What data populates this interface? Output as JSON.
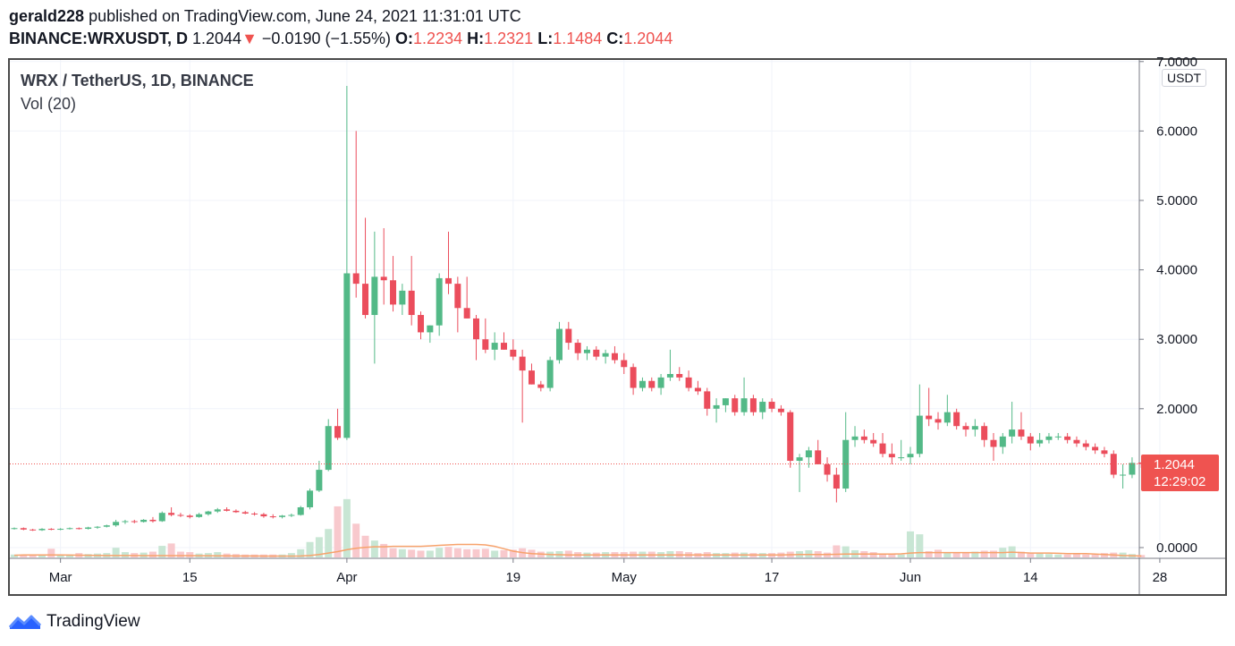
{
  "header": {
    "author": "gerald228",
    "published_text": "published on TradingView.com, June 24, 2021 11:31:01 UTC",
    "symbol": "BINANCE:WRXUSDT, D",
    "last": "1.2044",
    "change": "−0.0190 (−1.55%)",
    "o_label": "O:",
    "o_value": "1.2234",
    "h_label": "H:",
    "h_value": "1.2321",
    "l_label": "L:",
    "l_value": "1.1484",
    "c_label": "C:",
    "c_value": "1.2044"
  },
  "legend": {
    "title": "WRX / TetherUS, 1D, BINANCE",
    "volume": "Vol (20)"
  },
  "price_scale": {
    "unit": "USDT",
    "last_price": "1.2044",
    "countdown": "12:29:02"
  },
  "footer": {
    "brand": "TradingView"
  },
  "colors": {
    "up": "#26a69a",
    "up_candle": "#53b987",
    "down": "#eb4d5c",
    "volume_up": "#c8e6d4",
    "volume_down": "#f8c9cd",
    "vol_ma": "#f7a26b",
    "grid": "#f0f3fa",
    "price_tag": "#ef5350",
    "brand": "#2962ff"
  },
  "chart_data": {
    "type": "candlestick",
    "ylim": [
      0,
      7
    ],
    "y_ticks": [
      "0.0000",
      "2.0000",
      "3.0000",
      "4.0000",
      "5.0000",
      "6.0000",
      "7.0000"
    ],
    "x_ticks": [
      {
        "label": "Mar",
        "date": "2021-03-01"
      },
      {
        "label": "15",
        "date": "2021-03-15"
      },
      {
        "label": "Apr",
        "date": "2021-04-01"
      },
      {
        "label": "19",
        "date": "2021-04-19"
      },
      {
        "label": "May",
        "date": "2021-05-01"
      },
      {
        "label": "17",
        "date": "2021-05-17"
      },
      {
        "label": "Jun",
        "date": "2021-06-01"
      },
      {
        "label": "14",
        "date": "2021-06-14"
      },
      {
        "label": "28",
        "date": "2021-06-28"
      }
    ],
    "start_date": "2021-02-24",
    "ohlc": [
      [
        0.27,
        0.29,
        0.26,
        0.28
      ],
      [
        0.28,
        0.29,
        0.25,
        0.26
      ],
      [
        0.26,
        0.27,
        0.24,
        0.25
      ],
      [
        0.25,
        0.28,
        0.24,
        0.27
      ],
      [
        0.27,
        0.28,
        0.25,
        0.26
      ],
      [
        0.26,
        0.28,
        0.25,
        0.27
      ],
      [
        0.27,
        0.29,
        0.26,
        0.28
      ],
      [
        0.28,
        0.29,
        0.26,
        0.27
      ],
      [
        0.27,
        0.3,
        0.26,
        0.29
      ],
      [
        0.29,
        0.31,
        0.27,
        0.3
      ],
      [
        0.3,
        0.33,
        0.29,
        0.32
      ],
      [
        0.32,
        0.4,
        0.3,
        0.37
      ],
      [
        0.37,
        0.4,
        0.34,
        0.38
      ],
      [
        0.38,
        0.4,
        0.35,
        0.37
      ],
      [
        0.37,
        0.41,
        0.36,
        0.4
      ],
      [
        0.4,
        0.44,
        0.36,
        0.38
      ],
      [
        0.38,
        0.52,
        0.37,
        0.5
      ],
      [
        0.5,
        0.58,
        0.45,
        0.47
      ],
      [
        0.47,
        0.5,
        0.44,
        0.46
      ],
      [
        0.46,
        0.48,
        0.42,
        0.44
      ],
      [
        0.44,
        0.5,
        0.43,
        0.48
      ],
      [
        0.48,
        0.53,
        0.46,
        0.52
      ],
      [
        0.52,
        0.57,
        0.5,
        0.55
      ],
      [
        0.55,
        0.58,
        0.52,
        0.53
      ],
      [
        0.53,
        0.55,
        0.5,
        0.51
      ],
      [
        0.51,
        0.53,
        0.48,
        0.49
      ],
      [
        0.49,
        0.51,
        0.46,
        0.48
      ],
      [
        0.48,
        0.5,
        0.43,
        0.45
      ],
      [
        0.45,
        0.48,
        0.42,
        0.44
      ],
      [
        0.44,
        0.47,
        0.42,
        0.46
      ],
      [
        0.46,
        0.49,
        0.44,
        0.47
      ],
      [
        0.47,
        0.6,
        0.46,
        0.58
      ],
      [
        0.58,
        0.85,
        0.55,
        0.82
      ],
      [
        0.82,
        1.25,
        0.8,
        1.12
      ],
      [
        1.12,
        1.85,
        1.1,
        1.75
      ],
      [
        1.75,
        2.0,
        1.55,
        1.58
      ],
      [
        1.58,
        6.65,
        1.55,
        3.95
      ],
      [
        3.95,
        6.0,
        3.6,
        3.8
      ],
      [
        3.8,
        4.75,
        3.3,
        3.35
      ],
      [
        3.35,
        4.55,
        2.65,
        3.9
      ],
      [
        3.9,
        4.6,
        3.5,
        3.85
      ],
      [
        3.85,
        4.2,
        3.4,
        3.5
      ],
      [
        3.5,
        3.8,
        3.35,
        3.7
      ],
      [
        3.7,
        4.2,
        3.2,
        3.35
      ],
      [
        3.35,
        3.4,
        3.0,
        3.1
      ],
      [
        3.1,
        3.2,
        2.95,
        3.2
      ],
      [
        3.2,
        3.95,
        3.05,
        3.88
      ],
      [
        3.88,
        4.55,
        3.65,
        3.8
      ],
      [
        3.8,
        3.9,
        3.1,
        3.45
      ],
      [
        3.45,
        3.9,
        3.3,
        3.3
      ],
      [
        3.3,
        3.35,
        2.7,
        3.0
      ],
      [
        3.0,
        3.3,
        2.8,
        2.85
      ],
      [
        2.85,
        3.1,
        2.7,
        2.95
      ],
      [
        2.95,
        3.1,
        2.85,
        2.85
      ],
      [
        2.85,
        3.0,
        2.7,
        2.75
      ],
      [
        2.75,
        2.85,
        1.8,
        2.55
      ],
      [
        2.55,
        2.65,
        2.35,
        2.35
      ],
      [
        2.35,
        2.4,
        2.25,
        2.3
      ],
      [
        2.3,
        2.75,
        2.25,
        2.7
      ],
      [
        2.7,
        3.25,
        2.65,
        3.15
      ],
      [
        3.15,
        3.25,
        2.85,
        2.95
      ],
      [
        2.95,
        3.0,
        2.7,
        2.8
      ],
      [
        2.8,
        2.9,
        2.7,
        2.85
      ],
      [
        2.85,
        2.9,
        2.7,
        2.75
      ],
      [
        2.75,
        2.85,
        2.65,
        2.8
      ],
      [
        2.8,
        2.9,
        2.65,
        2.7
      ],
      [
        2.7,
        2.8,
        2.5,
        2.6
      ],
      [
        2.6,
        2.65,
        2.2,
        2.3
      ],
      [
        2.3,
        2.45,
        2.25,
        2.4
      ],
      [
        2.4,
        2.45,
        2.25,
        2.3
      ],
      [
        2.3,
        2.5,
        2.2,
        2.45
      ],
      [
        2.45,
        2.85,
        2.4,
        2.5
      ],
      [
        2.5,
        2.6,
        2.4,
        2.45
      ],
      [
        2.45,
        2.55,
        2.25,
        2.3
      ],
      [
        2.3,
        2.4,
        2.2,
        2.25
      ],
      [
        2.25,
        2.3,
        1.9,
        2.0
      ],
      [
        2.0,
        2.15,
        1.8,
        2.05
      ],
      [
        2.05,
        2.15,
        1.95,
        2.15
      ],
      [
        2.15,
        2.2,
        1.9,
        1.95
      ],
      [
        1.95,
        2.45,
        1.9,
        2.15
      ],
      [
        2.15,
        2.2,
        1.9,
        1.95
      ],
      [
        1.95,
        2.15,
        1.85,
        2.1
      ],
      [
        2.1,
        2.15,
        1.95,
        2.0
      ],
      [
        2.0,
        2.05,
        1.9,
        1.95
      ],
      [
        1.95,
        1.98,
        1.15,
        1.25
      ],
      [
        1.25,
        1.35,
        0.8,
        1.3
      ],
      [
        1.3,
        1.45,
        1.15,
        1.4
      ],
      [
        1.4,
        1.55,
        1.2,
        1.2
      ],
      [
        1.2,
        1.3,
        0.95,
        1.05
      ],
      [
        1.05,
        1.15,
        0.65,
        0.85
      ],
      [
        0.85,
        1.95,
        0.8,
        1.55
      ],
      [
        1.55,
        1.75,
        1.45,
        1.6
      ],
      [
        1.6,
        1.7,
        1.5,
        1.55
      ],
      [
        1.55,
        1.65,
        1.45,
        1.5
      ],
      [
        1.5,
        1.65,
        1.3,
        1.35
      ],
      [
        1.35,
        1.5,
        1.2,
        1.3
      ],
      [
        1.3,
        1.55,
        1.25,
        1.3
      ],
      [
        1.3,
        1.45,
        1.2,
        1.35
      ],
      [
        1.35,
        2.35,
        1.3,
        1.9
      ],
      [
        1.9,
        2.3,
        1.75,
        1.85
      ],
      [
        1.85,
        1.95,
        1.7,
        1.8
      ],
      [
        1.8,
        2.2,
        1.75,
        1.95
      ],
      [
        1.95,
        2.0,
        1.7,
        1.75
      ],
      [
        1.75,
        1.8,
        1.6,
        1.7
      ],
      [
        1.7,
        1.85,
        1.6,
        1.75
      ],
      [
        1.75,
        1.8,
        1.45,
        1.55
      ],
      [
        1.55,
        1.65,
        1.25,
        1.45
      ],
      [
        1.45,
        1.65,
        1.35,
        1.6
      ],
      [
        1.6,
        2.1,
        1.5,
        1.7
      ],
      [
        1.7,
        1.95,
        1.55,
        1.6
      ],
      [
        1.6,
        1.65,
        1.4,
        1.5
      ],
      [
        1.5,
        1.65,
        1.45,
        1.55
      ],
      [
        1.55,
        1.65,
        1.5,
        1.6
      ],
      [
        1.6,
        1.65,
        1.55,
        1.6
      ],
      [
        1.6,
        1.65,
        1.5,
        1.55
      ],
      [
        1.55,
        1.6,
        1.45,
        1.5
      ],
      [
        1.5,
        1.55,
        1.4,
        1.45
      ],
      [
        1.45,
        1.5,
        1.35,
        1.4
      ],
      [
        1.4,
        1.45,
        1.3,
        1.35
      ],
      [
        1.35,
        1.4,
        1.0,
        1.05
      ],
      [
        1.05,
        1.2,
        0.85,
        1.05
      ],
      [
        1.05,
        1.3,
        1.0,
        1.22
      ],
      [
        1.2234,
        1.2321,
        1.1484,
        1.2044
      ]
    ],
    "volume": [
      0.6,
      0.5,
      0.5,
      0.6,
      1.8,
      0.6,
      0.6,
      0.9,
      0.7,
      0.8,
      0.9,
      2.0,
      1.1,
      0.9,
      1.0,
      1.2,
      2.4,
      2.9,
      1.2,
      1.1,
      0.8,
      0.9,
      1.1,
      0.8,
      0.7,
      0.6,
      0.6,
      0.6,
      0.6,
      0.6,
      0.9,
      1.7,
      3.2,
      4.2,
      5.9,
      10.6,
      12.1,
      7.0,
      4.5,
      3.5,
      2.8,
      1.9,
      1.7,
      1.6,
      1.4,
      1.4,
      2.0,
      2.2,
      1.9,
      1.7,
      1.7,
      1.8,
      1.4,
      1.5,
      1.6,
      1.9,
      1.6,
      1.2,
      1.2,
      1.3,
      1.4,
      1.1,
      1.0,
      1.0,
      1.1,
      1.1,
      1.1,
      1.2,
      1.2,
      1.2,
      1.1,
      1.3,
      1.3,
      1.1,
      0.9,
      1.1,
      0.9,
      0.9,
      1.0,
      1.0,
      0.9,
      0.9,
      0.9,
      1.0,
      1.2,
      1.3,
      1.5,
      1.3,
      1.0,
      2.5,
      2.3,
      1.5,
      1.3,
      1.1,
      0.7,
      0.7,
      0.6,
      5.4,
      4.8,
      1.3,
      1.6,
      1.1,
      1.0,
      1.0,
      1.2,
      1.4,
      1.4,
      2.0,
      2.3,
      1.2,
      0.8,
      0.8,
      0.7,
      0.6,
      0.6,
      0.7,
      0.6,
      0.6,
      0.9,
      1.0,
      1.0,
      0.7,
      0.5
    ],
    "volume_ma": [
      0.45,
      0.5,
      0.52,
      0.52,
      0.52,
      0.5,
      0.48,
      0.46,
      0.44,
      0.42,
      0.4,
      0.4,
      0.4,
      0.4,
      0.38,
      0.38,
      0.38,
      0.37,
      0.36,
      0.36,
      0.35,
      0.34,
      0.33,
      0.32,
      0.31,
      0.3,
      0.3,
      0.29,
      0.29,
      0.28,
      0.28,
      0.3,
      0.4,
      0.6,
      0.9,
      1.2,
      1.6,
      1.9,
      2.1,
      2.2,
      2.2,
      2.3,
      2.3,
      2.3,
      2.3,
      2.4,
      2.5,
      2.6,
      2.7,
      2.7,
      2.7,
      2.6,
      2.3,
      1.8,
      1.3,
      1.0,
      0.8,
      0.7,
      0.6,
      0.55,
      0.5,
      0.5,
      0.5,
      0.5,
      0.5,
      0.5,
      0.5,
      0.5,
      0.5,
      0.5,
      0.5,
      0.5,
      0.5,
      0.5,
      0.5,
      0.5,
      0.5,
      0.5,
      0.5,
      0.5,
      0.5,
      0.5,
      0.5,
      0.5,
      0.55,
      0.6,
      0.6,
      0.6,
      0.6,
      0.65,
      0.7,
      0.7,
      0.7,
      0.7,
      0.7,
      0.7,
      0.75,
      0.9,
      1.0,
      1.0,
      1.0,
      1.0,
      1.0,
      1.0,
      1.0,
      1.0,
      1.0,
      1.0,
      1.1,
      1.0,
      0.9,
      0.9,
      0.9,
      0.85,
      0.8,
      0.8,
      0.8,
      0.7,
      0.6,
      0.5,
      0.4,
      0.35,
      0.3
    ],
    "volume_max": 13,
    "last_price": 1.2044
  }
}
